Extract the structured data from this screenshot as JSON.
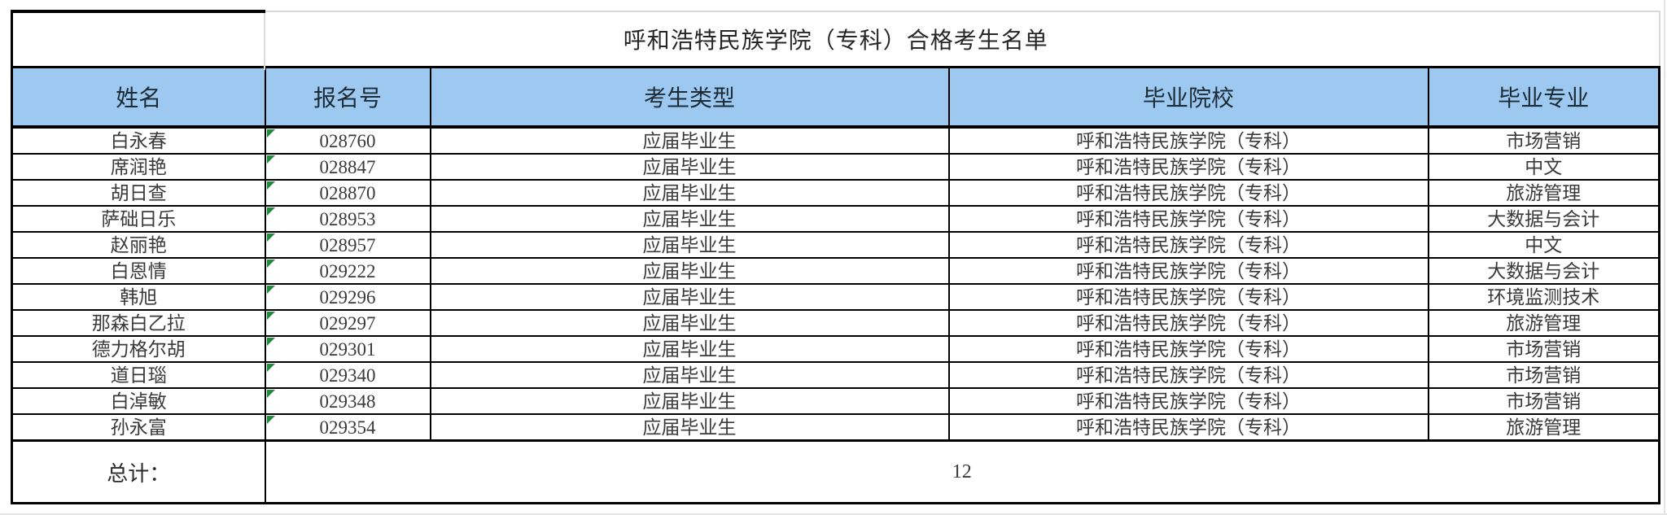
{
  "colors": {
    "header_bg": "#9DC9F0",
    "table_border": "#000000",
    "light_border": "#D9D9D9",
    "error_indicator_green": "#1E8C3E",
    "background": "#FFFFFF"
  },
  "table": {
    "title": "呼和浩特民族学院（专科）合格考生名单",
    "columns": [
      "姓名",
      "报名号",
      "考生类型",
      "毕业院校",
      "毕业专业"
    ],
    "rows": [
      {
        "name": "白永春",
        "reg_no": "028760",
        "type": "应届毕业生",
        "school": "呼和浩特民族学院（专科）",
        "major": "市场营销"
      },
      {
        "name": "席润艳",
        "reg_no": "028847",
        "type": "应届毕业生",
        "school": "呼和浩特民族学院（专科）",
        "major": "中文"
      },
      {
        "name": "胡日查",
        "reg_no": "028870",
        "type": "应届毕业生",
        "school": "呼和浩特民族学院（专科）",
        "major": "旅游管理"
      },
      {
        "name": "萨础日乐",
        "reg_no": "028953",
        "type": "应届毕业生",
        "school": "呼和浩特民族学院（专科）",
        "major": "大数据与会计"
      },
      {
        "name": "赵丽艳",
        "reg_no": "028957",
        "type": "应届毕业生",
        "school": "呼和浩特民族学院（专科）",
        "major": "中文"
      },
      {
        "name": "白恩情",
        "reg_no": "029222",
        "type": "应届毕业生",
        "school": "呼和浩特民族学院（专科）",
        "major": "大数据与会计"
      },
      {
        "name": "韩旭",
        "reg_no": "029296",
        "type": "应届毕业生",
        "school": "呼和浩特民族学院（专科）",
        "major": "环境监测技术"
      },
      {
        "name": "那森白乙拉",
        "reg_no": "029297",
        "type": "应届毕业生",
        "school": "呼和浩特民族学院（专科）",
        "major": "旅游管理"
      },
      {
        "name": "德力格尔胡",
        "reg_no": "029301",
        "type": "应届毕业生",
        "school": "呼和浩特民族学院（专科）",
        "major": "市场营销"
      },
      {
        "name": "道日瑙",
        "reg_no": "029340",
        "type": "应届毕业生",
        "school": "呼和浩特民族学院（专科）",
        "major": "市场营销"
      },
      {
        "name": "白淖敏",
        "reg_no": "029348",
        "type": "应届毕业生",
        "school": "呼和浩特民族学院（专科）",
        "major": "市场营销"
      },
      {
        "name": "孙永富",
        "reg_no": "029354",
        "type": "应届毕业生",
        "school": "呼和浩特民族学院（专科）",
        "major": "旅游管理"
      }
    ],
    "footer": {
      "label": "总计：",
      "total": "12"
    }
  }
}
